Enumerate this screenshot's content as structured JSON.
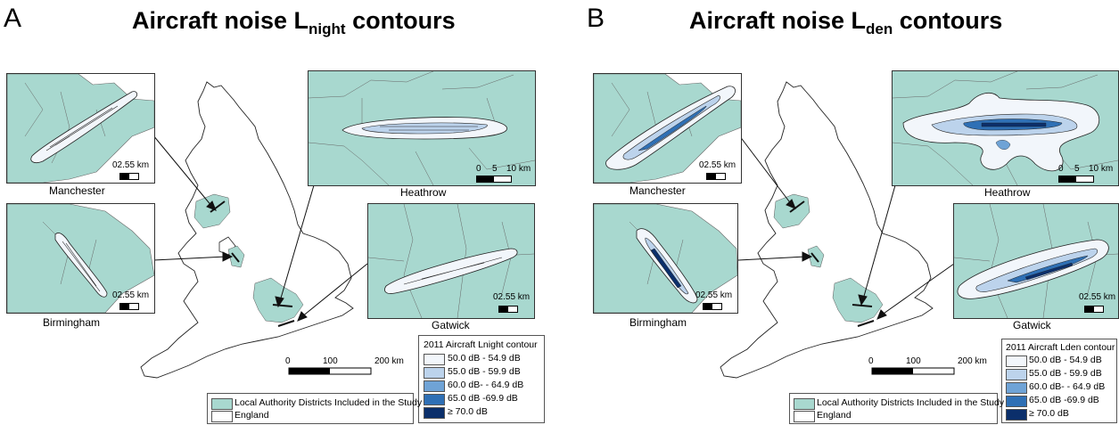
{
  "panels": [
    {
      "letter": "A",
      "title_main": "Aircraft noise L",
      "title_sub": "night",
      "title_end": " contours",
      "insets": {
        "manchester": {
          "name": "Manchester",
          "scale": "02.55 km"
        },
        "heathrow": {
          "name": "Heathrow",
          "scale_ticks": [
            "0",
            "5",
            "10 km"
          ]
        },
        "birmingham": {
          "name": "Birmingham",
          "scale": "02.55 km"
        },
        "gatwick": {
          "name": "Gatwick",
          "scale": "02.55 km"
        }
      },
      "main_scale": [
        "0",
        "100",
        "200 km"
      ],
      "districts_legend": [
        "Local Authority Districts Included in the Study",
        "England"
      ],
      "contour_legend": {
        "title": "2011 Aircraft Lnight contour",
        "items": [
          "50.0 dB - 54.9 dB",
          "55.0 dB - 59.9 dB",
          "60.0 dB- - 64.9 dB",
          "65.0 dB -69.9 dB",
          "≥ 70.0 dB"
        ]
      }
    },
    {
      "letter": "B",
      "title_main": "Aircraft noise L",
      "title_sub": "den",
      "title_end": " contours",
      "insets": {
        "manchester": {
          "name": "Manchester",
          "scale": "02.55 km"
        },
        "heathrow": {
          "name": "Heathrow",
          "scale_ticks": [
            "0",
            "5",
            "10 km"
          ]
        },
        "birmingham": {
          "name": "Birmingham",
          "scale": "02.55 km"
        },
        "gatwick": {
          "name": "Gatwick",
          "scale": "02.55 km"
        }
      },
      "main_scale": [
        "0",
        "100",
        "200 km"
      ],
      "districts_legend": [
        "Local Authority Districts Included in the Study",
        "England"
      ],
      "contour_legend": {
        "title": "2011 Aircraft Lden contour",
        "items": [
          "50.0 dB - 54.9 dB",
          "55.0 dB - 59.9 dB",
          "60.0 dB- - 64.9 dB",
          "65.0 dB -69.9 dB",
          "≥ 70.0 dB"
        ]
      }
    }
  ],
  "colors": {
    "district_fill": "#a8d8cf",
    "contour_50": "#f2f6fb",
    "contour_55": "#bcd3ec",
    "contour_60": "#6fa3d6",
    "contour_65": "#2f70b5",
    "contour_70": "#0b2f6b"
  }
}
